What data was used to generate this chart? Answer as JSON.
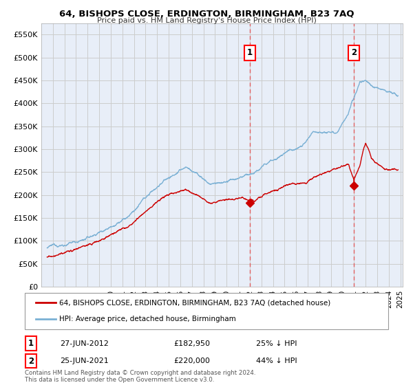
{
  "title": "64, BISHOPS CLOSE, ERDINGTON, BIRMINGHAM, B23 7AQ",
  "subtitle": "Price paid vs. HM Land Registry's House Price Index (HPI)",
  "ylabel_ticks": [
    "£0",
    "£50K",
    "£100K",
    "£150K",
    "£200K",
    "£250K",
    "£300K",
    "£350K",
    "£400K",
    "£450K",
    "£500K",
    "£550K"
  ],
  "ytick_values": [
    0,
    50000,
    100000,
    150000,
    200000,
    250000,
    300000,
    350000,
    400000,
    450000,
    500000,
    550000
  ],
  "xmin": 1994.5,
  "xmax": 2025.7,
  "ymin": 0,
  "ymax": 575000,
  "red_line_color": "#cc0000",
  "blue_line_color": "#7ab0d4",
  "marker1_date": 2012.49,
  "marker1_value": 182950,
  "marker1_label": "1",
  "marker2_date": 2021.49,
  "marker2_value": 220000,
  "marker2_label": "2",
  "legend_line1": "64, BISHOPS CLOSE, ERDINGTON, BIRMINGHAM, B23 7AQ (detached house)",
  "legend_line2": "HPI: Average price, detached house, Birmingham",
  "footnote": "Contains HM Land Registry data © Crown copyright and database right 2024.\nThis data is licensed under the Open Government Licence v3.0.",
  "dashed_line_color": "#e06060",
  "grid_color": "#cccccc",
  "background_color": "#ffffff",
  "plot_bg_color": "#e8eef8"
}
